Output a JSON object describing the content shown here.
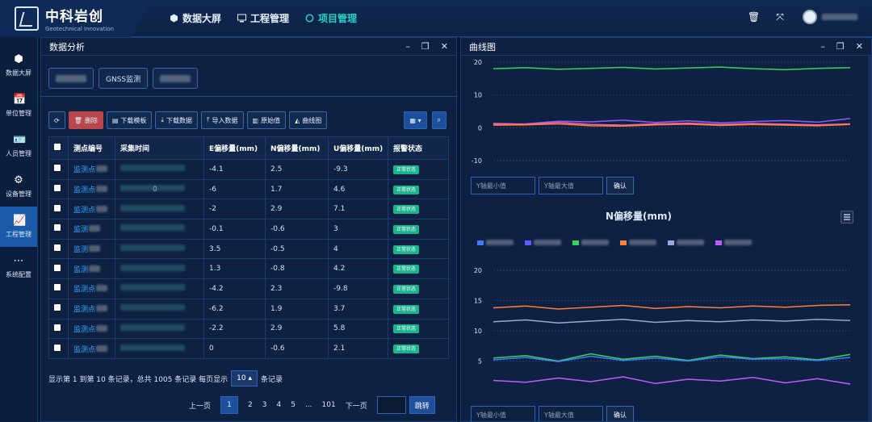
{
  "header": {
    "logo_cn": "中科岩创",
    "logo_en": "Geotechnical Innovation",
    "nav": [
      {
        "label": "数据大屏",
        "icon": "cube-icon"
      },
      {
        "label": "工程管理",
        "icon": "monitor-icon"
      },
      {
        "label": "项目管理",
        "icon": "circle-icon",
        "active": true
      }
    ]
  },
  "sidebar": {
    "items": [
      {
        "label": "数据大屏",
        "icon": "cube-icon"
      },
      {
        "label": "单位管理",
        "icon": "calendar-icon"
      },
      {
        "label": "人员管理",
        "icon": "user-card-icon"
      },
      {
        "label": "设备管理",
        "icon": "gear-icon"
      },
      {
        "label": "工程管理",
        "icon": "chart-icon",
        "active": true
      },
      {
        "label": "系统配置",
        "icon": "dots-icon"
      }
    ]
  },
  "left_panel": {
    "title": "数据分析",
    "tabs": [
      "GNSS监测"
    ],
    "toolbar": {
      "refresh": "",
      "delete": "删除",
      "download_template": "下载模板",
      "download_data": "下载数据",
      "import_data": "导入数据",
      "raw_value": "原始值",
      "curve": "曲线图"
    },
    "table": {
      "headers": [
        "测点编号",
        "采集时间",
        "E偏移量(mm)",
        "N偏移量(mm)",
        "U偏移量(mm)",
        "报警状态"
      ],
      "rows": [
        {
          "id": "监测点",
          "time": "",
          "e": "-4.1",
          "n": "2.5",
          "u": "-9.3",
          "status": "正常状态"
        },
        {
          "id": "监测点",
          "time": "0",
          "e": "-6",
          "n": "1.7",
          "u": "4.6",
          "status": "正常状态"
        },
        {
          "id": "监测点",
          "time": "",
          "e": "-2",
          "n": "2.9",
          "u": "7.1",
          "status": "正常状态"
        },
        {
          "id": "监测",
          "time": "",
          "e": "-0.1",
          "n": "-0.6",
          "u": "3",
          "status": "正常状态"
        },
        {
          "id": "监测",
          "time": "",
          "e": "3.5",
          "n": "-0.5",
          "u": "4",
          "status": "正常状态"
        },
        {
          "id": "监测",
          "time": "",
          "e": "1.3",
          "n": "-0.8",
          "u": "4.2",
          "status": "正常状态"
        },
        {
          "id": "监测点",
          "time": "",
          "e": "-4.2",
          "n": "2.3",
          "u": "-9.8",
          "status": "正常状态"
        },
        {
          "id": "监测点",
          "time": "",
          "e": "-6.2",
          "n": "1.9",
          "u": "3.7",
          "status": "正常状态"
        },
        {
          "id": "监测点",
          "time": "",
          "e": "-2.2",
          "n": "2.9",
          "u": "5.8",
          "status": "正常状态"
        },
        {
          "id": "监测点",
          "time": "",
          "e": "0",
          "n": "-0.6",
          "u": "2.1",
          "status": "正常状态"
        }
      ]
    },
    "footer": {
      "summary": "显示第 1 到第 10 条记录，总共 1005 条记录 每页显示",
      "page_size": "10",
      "suffix": "条记录"
    },
    "pager": {
      "prev": "上一页",
      "pages": [
        "1",
        "2",
        "3",
        "4",
        "5"
      ],
      "ellipsis": "...",
      "last": "101",
      "next": "下一页",
      "jump": "跳转"
    }
  },
  "right_panel": {
    "title": "曲线图",
    "ymin_placeholder": "Y轴最小值",
    "ymax_placeholder": "Y轴最大值",
    "confirm": "确认"
  },
  "chart_data": [
    {
      "type": "line",
      "title": "",
      "yticks": [
        "20",
        "10",
        "0",
        "-10"
      ],
      "ylim": [
        -10,
        20
      ],
      "series": [
        {
          "color": "#2fd65a",
          "values": [
            18,
            18.3,
            17.8,
            18.1,
            18.4,
            17.9,
            18.2,
            18.5,
            18,
            17.7,
            18.1,
            18.3
          ]
        },
        {
          "color": "#8a5cff",
          "values": [
            1,
            1.2,
            2,
            1.8,
            2.3,
            1.6,
            2.1,
            1.5,
            1.9,
            2.2,
            1.7,
            2.8
          ]
        },
        {
          "color": "#ff5fa8",
          "values": [
            1.3,
            1.1,
            1.6,
            1,
            0.8,
            1.2,
            1.4,
            1,
            1.3,
            1.1,
            0.9,
            1.2
          ]
        },
        {
          "color": "#ff7f3a",
          "values": [
            0.8,
            0.9,
            1.2,
            0.6,
            0.5,
            0.9,
            1.1,
            0.7,
            1,
            0.8,
            0.6,
            1
          ]
        }
      ]
    },
    {
      "type": "line",
      "title": "N偏移量(mm)",
      "yticks": [
        "20",
        "15",
        "10",
        "5"
      ],
      "ylim": [
        0,
        20
      ],
      "series": [
        {
          "color": "#ff7f3a",
          "values": [
            13.8,
            14.1,
            13.6,
            13.9,
            14.2,
            13.7,
            14,
            13.8,
            14.1,
            13.9,
            14.2,
            14.3
          ]
        },
        {
          "color": "#9aa7d8",
          "values": [
            11.5,
            11.8,
            11.3,
            11.6,
            11.9,
            11.4,
            11.7,
            11.5,
            11.8,
            11.6,
            11.9,
            11.7
          ]
        },
        {
          "color": "#2fd65a",
          "values": [
            5.5,
            5.9,
            5,
            6.2,
            5.3,
            5.8,
            5.1,
            6,
            5.4,
            5.7,
            5.2,
            6.1
          ]
        },
        {
          "color": "#3f7bff",
          "values": [
            5.2,
            5.6,
            4.9,
            5.8,
            5.1,
            5.5,
            5,
            5.7,
            5.3,
            5.4,
            5.1,
            5.6
          ]
        },
        {
          "color": "#c05cff",
          "values": [
            1.8,
            1.5,
            2.2,
            1.6,
            2.4,
            1.3,
            2,
            1.7,
            2.3,
            1.4,
            2.1,
            1.2
          ]
        }
      ]
    }
  ]
}
